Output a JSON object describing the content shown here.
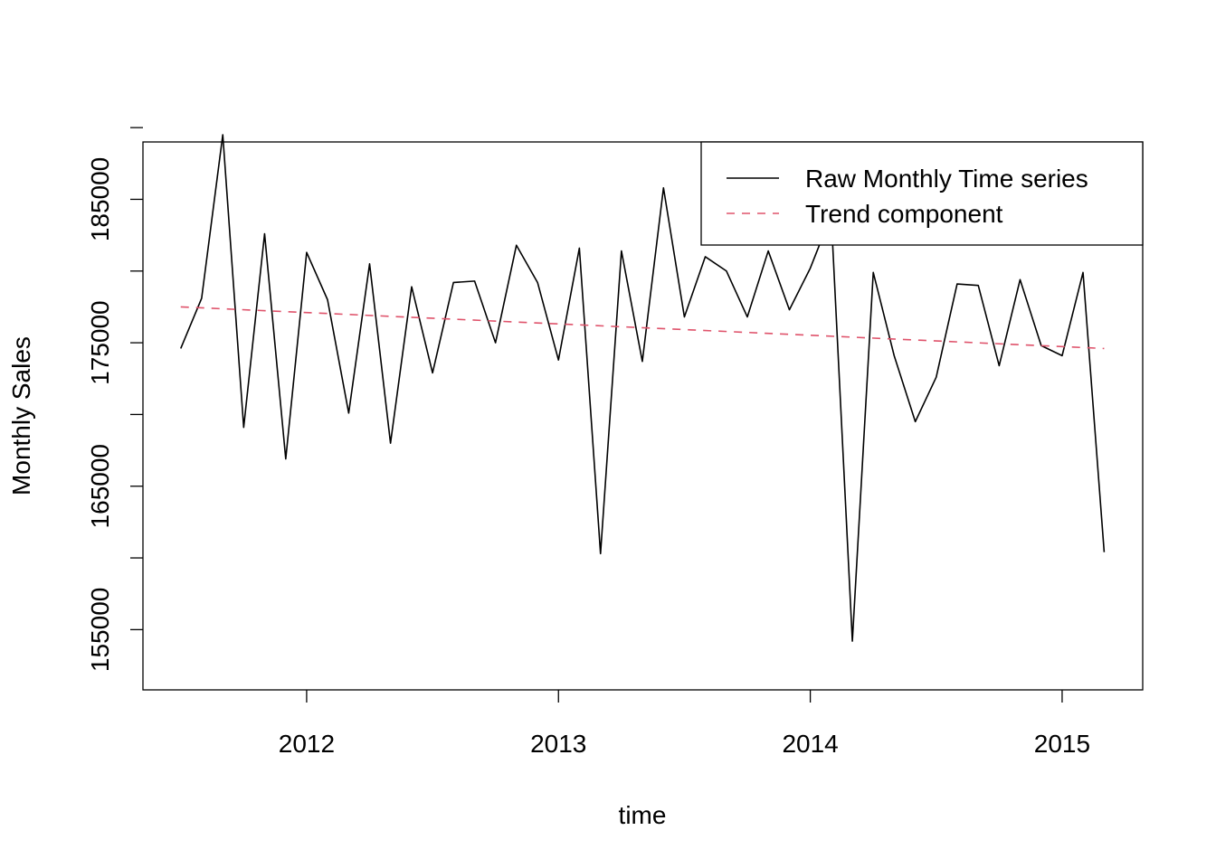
{
  "chart_data": {
    "type": "line",
    "xlabel": "time",
    "ylabel": "Monthly Sales",
    "xlim": [
      2011.35,
      2015.32
    ],
    "ylim": [
      150800,
      189000
    ],
    "x_ticks": [
      2012,
      2013,
      2014,
      2015
    ],
    "x_tick_labels": [
      "2012",
      "2013",
      "2014",
      "2015"
    ],
    "y_ticks": [
      155000,
      160000,
      165000,
      170000,
      175000,
      180000,
      185000,
      190000
    ],
    "y_tick_labels": [
      "155000",
      "165000",
      "175000",
      "185000"
    ],
    "y_tick_labels_values": [
      155000,
      165000,
      175000,
      185000
    ],
    "grid": false,
    "legend_position": "top-right",
    "series": [
      {
        "name": "Raw Monthly Time series",
        "style": "solid",
        "color": "#000000",
        "x": [
          2011.5,
          2011.583,
          2011.667,
          2011.75,
          2011.833,
          2011.917,
          2012.0,
          2012.083,
          2012.167,
          2012.25,
          2012.333,
          2012.417,
          2012.5,
          2012.583,
          2012.667,
          2012.75,
          2012.833,
          2012.917,
          2013.0,
          2013.083,
          2013.167,
          2013.25,
          2013.333,
          2013.417,
          2013.5,
          2013.583,
          2013.667,
          2013.75,
          2013.833,
          2013.917,
          2014.0,
          2014.083,
          2014.167,
          2014.25,
          2014.333,
          2014.417,
          2014.5,
          2014.583,
          2014.667,
          2014.75,
          2014.833,
          2014.917,
          2015.0,
          2015.083,
          2015.167
        ],
        "values": [
          174600,
          178100,
          189500,
          169100,
          182600,
          166900,
          181300,
          178000,
          170100,
          180500,
          168000,
          178900,
          172900,
          179200,
          179300,
          175000,
          181800,
          179200,
          173800,
          181600,
          160300,
          181400,
          173700,
          185800,
          176800,
          181000,
          180000,
          176800,
          181400,
          177300,
          180200,
          183900,
          154200,
          179900,
          174100,
          169500,
          172600,
          179100,
          179000,
          173400,
          179400,
          174800,
          174100,
          179900,
          160400
        ]
      },
      {
        "name": "Trend component",
        "style": "dashed",
        "color": "#DF536B",
        "x": [
          2011.5,
          2015.167
        ],
        "values": [
          177500,
          174600
        ]
      }
    ]
  }
}
